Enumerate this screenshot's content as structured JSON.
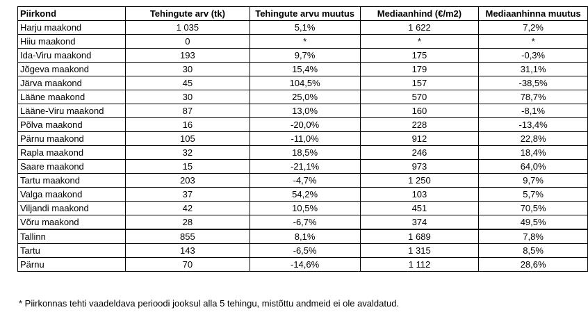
{
  "table": {
    "headers": [
      "Piirkond",
      "Tehingute arv (tk)",
      "Tehingute arvu muutus",
      "Mediaanhind (€/m2)",
      "Mediaanhinna muutus"
    ],
    "rows": [
      [
        "Harju maakond",
        "1 035",
        "5,1%",
        "1 622",
        "7,2%"
      ],
      [
        "Hiiu maakond",
        "0",
        "*",
        "*",
        "*"
      ],
      [
        "Ida-Viru maakond",
        "193",
        "9,7%",
        "175",
        "-0,3%"
      ],
      [
        "Jõgeva maakond",
        "30",
        "15,4%",
        "179",
        "31,1%"
      ],
      [
        "Järva maakond",
        "45",
        "104,5%",
        "157",
        "-38,5%"
      ],
      [
        "Lääne maakond",
        "30",
        "25,0%",
        "570",
        "78,7%"
      ],
      [
        "Lääne-Viru maakond",
        "87",
        "13,0%",
        "160",
        "-8,1%"
      ],
      [
        "Põlva maakond",
        "16",
        "-20,0%",
        "228",
        "-13,4%"
      ],
      [
        "Pärnu maakond",
        "105",
        "-11,0%",
        "912",
        "22,8%"
      ],
      [
        "Rapla maakond",
        "32",
        "18,5%",
        "246",
        "18,4%"
      ],
      [
        "Saare maakond",
        "15",
        "-21,1%",
        "973",
        "64,0%"
      ],
      [
        "Tartu maakond",
        "203",
        "-4,7%",
        "1 250",
        "9,7%"
      ],
      [
        "Valga maakond",
        "37",
        "54,2%",
        "103",
        "5,7%"
      ],
      [
        "Viljandi maakond",
        "42",
        "10,5%",
        "451",
        "70,5%"
      ],
      [
        "Võru maakond",
        "28",
        "-6,7%",
        "374",
        "49,5%"
      ],
      [
        "Tallinn",
        "855",
        "8,1%",
        "1 689",
        "7,8%"
      ],
      [
        "Tartu",
        "143",
        "-6,5%",
        "1 315",
        "8,5%"
      ],
      [
        "Pärnu",
        "70",
        "-14,6%",
        "1 112",
        "28,6%"
      ]
    ]
  },
  "footnote": "* Piirkonnas tehti vaadeldava perioodi jooksul alla 5 tehingu, mistõttu andmeid ei ole avaldatud."
}
